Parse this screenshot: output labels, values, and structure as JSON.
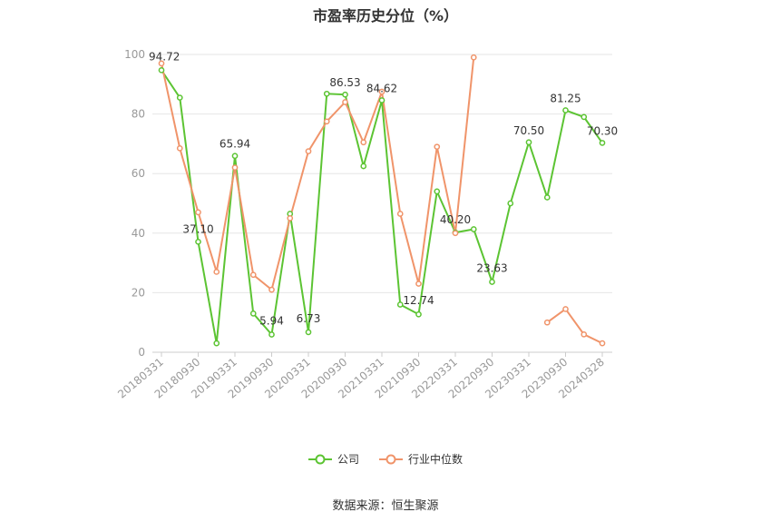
{
  "chart_data": {
    "type": "line",
    "title": "市盈率历史分位（%）",
    "source": "数据来源：恒生聚源",
    "ylim": [
      0,
      100
    ],
    "yticks": [
      0,
      20,
      40,
      60,
      80,
      100
    ],
    "x": [
      "20180331",
      "20180630",
      "20180930",
      "20181231",
      "20190331",
      "20190630",
      "20190930",
      "20191231",
      "20200331",
      "20200630",
      "20200930",
      "20201231",
      "20210331",
      "20210630",
      "20210930",
      "20211231",
      "20220331",
      "20220630",
      "20220930",
      "20221231",
      "20230331",
      "20230630",
      "20230930",
      "20231231",
      "20240328"
    ],
    "xtick_labels": [
      "20180331",
      "20180930",
      "20190331",
      "20190930",
      "20200331",
      "20200930",
      "20210331",
      "20210930",
      "20220331",
      "20220930",
      "20230331",
      "20230930",
      "20240328"
    ],
    "series": [
      {
        "name": "公司",
        "color": "#5cc433",
        "values": [
          94.72,
          85.5,
          37.1,
          3,
          65.94,
          13,
          5.94,
          46.5,
          6.73,
          86.8,
          86.53,
          62.5,
          84.62,
          16,
          12.74,
          54,
          40.2,
          41.3,
          23.63,
          50,
          70.5,
          52,
          81.25,
          79,
          70.3
        ]
      },
      {
        "name": "行业中位数",
        "color": "#f0946a",
        "values": [
          97,
          68.5,
          47,
          27,
          62,
          26,
          21,
          45,
          67.5,
          77.5,
          84,
          70.5,
          87.5,
          46.5,
          23,
          69,
          40,
          99,
          null,
          null,
          null,
          10,
          14.5,
          6,
          3
        ]
      }
    ],
    "data_labels": [
      {
        "index": 0,
        "text": "94.72"
      },
      {
        "index": 2,
        "text": "37.10"
      },
      {
        "index": 4,
        "text": "65.94"
      },
      {
        "index": 6,
        "text": "5.94"
      },
      {
        "index": 8,
        "text": "6.73"
      },
      {
        "index": 10,
        "text": "86.53"
      },
      {
        "index": 12,
        "text": "84.62"
      },
      {
        "index": 14,
        "text": "12.74"
      },
      {
        "index": 16,
        "text": "40.20"
      },
      {
        "index": 18,
        "text": "23.63"
      },
      {
        "index": 20,
        "text": "70.50"
      },
      {
        "index": 22,
        "text": "81.25"
      },
      {
        "index": 24,
        "text": "70.30"
      }
    ],
    "legend_position": "bottom",
    "grid": true
  }
}
